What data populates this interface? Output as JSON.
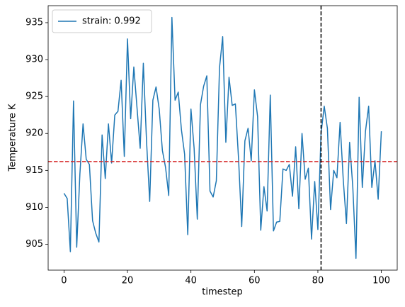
{
  "chart_data": {
    "type": "line",
    "xlabel": "timestep",
    "ylabel": "Temperature K",
    "x": [
      0,
      1,
      2,
      3,
      4,
      5,
      6,
      7,
      8,
      9,
      10,
      11,
      12,
      13,
      14,
      15,
      16,
      17,
      18,
      19,
      20,
      21,
      22,
      23,
      24,
      25,
      26,
      27,
      28,
      29,
      30,
      31,
      32,
      33,
      34,
      35,
      36,
      37,
      38,
      39,
      40,
      41,
      42,
      43,
      44,
      45,
      46,
      47,
      48,
      49,
      50,
      51,
      52,
      53,
      54,
      55,
      56,
      57,
      58,
      59,
      60,
      61,
      62,
      63,
      64,
      65,
      66,
      67,
      68,
      69,
      70,
      71,
      72,
      73,
      74,
      75,
      76,
      77,
      78,
      79,
      80,
      81,
      82,
      83,
      84,
      85,
      86,
      87,
      88,
      89,
      90,
      91,
      92,
      93,
      94,
      95,
      96,
      97,
      98,
      99,
      100
    ],
    "series": [
      {
        "name": "strain: 0.992",
        "color": "#1f77b4",
        "values": [
          911.9,
          911.2,
          904.0,
          924.4,
          904.6,
          914.5,
          921.3,
          916.5,
          915.8,
          908.2,
          906.5,
          905.3,
          919.8,
          913.9,
          921.3,
          916.0,
          922.5,
          923.0,
          927.2,
          916.9,
          932.8,
          922.0,
          929.0,
          923.5,
          918.0,
          929.5,
          919.0,
          910.8,
          924.5,
          926.3,
          923.3,
          917.7,
          915.4,
          911.6,
          935.7,
          924.5,
          925.6,
          920.5,
          917.2,
          906.3,
          923.3,
          918.0,
          908.4,
          923.9,
          926.4,
          927.8,
          912.2,
          911.4,
          913.6,
          928.9,
          933.1,
          918.8,
          927.6,
          923.8,
          924.0,
          916.6,
          907.4,
          919.0,
          920.7,
          916.3,
          925.9,
          922.3,
          906.9,
          912.8,
          909.5,
          925.2,
          906.8,
          908.0,
          908.1,
          915.2,
          915.0,
          915.8,
          911.5,
          918.2,
          909.8,
          920.0,
          913.8,
          915.3,
          905.7,
          913.5,
          907.0,
          920.0,
          923.7,
          920.7,
          909.7,
          915.0,
          914.0,
          921.5,
          913.7,
          907.8,
          918.8,
          912.8,
          903.1,
          924.9,
          912.7,
          920.3,
          923.7,
          912.7,
          916.3,
          911.1,
          920.3
        ]
      }
    ],
    "hline": {
      "value": 916.2,
      "color": "#d62728"
    },
    "vline": {
      "value": 81,
      "color": "#000000"
    },
    "xlim": [
      -5,
      105
    ],
    "ylim": [
      901.5,
      937.3
    ],
    "xticks": [
      0,
      20,
      40,
      60,
      80,
      100
    ],
    "yticks": [
      905,
      910,
      915,
      920,
      925,
      930,
      935
    ],
    "legend": "upper-left"
  }
}
